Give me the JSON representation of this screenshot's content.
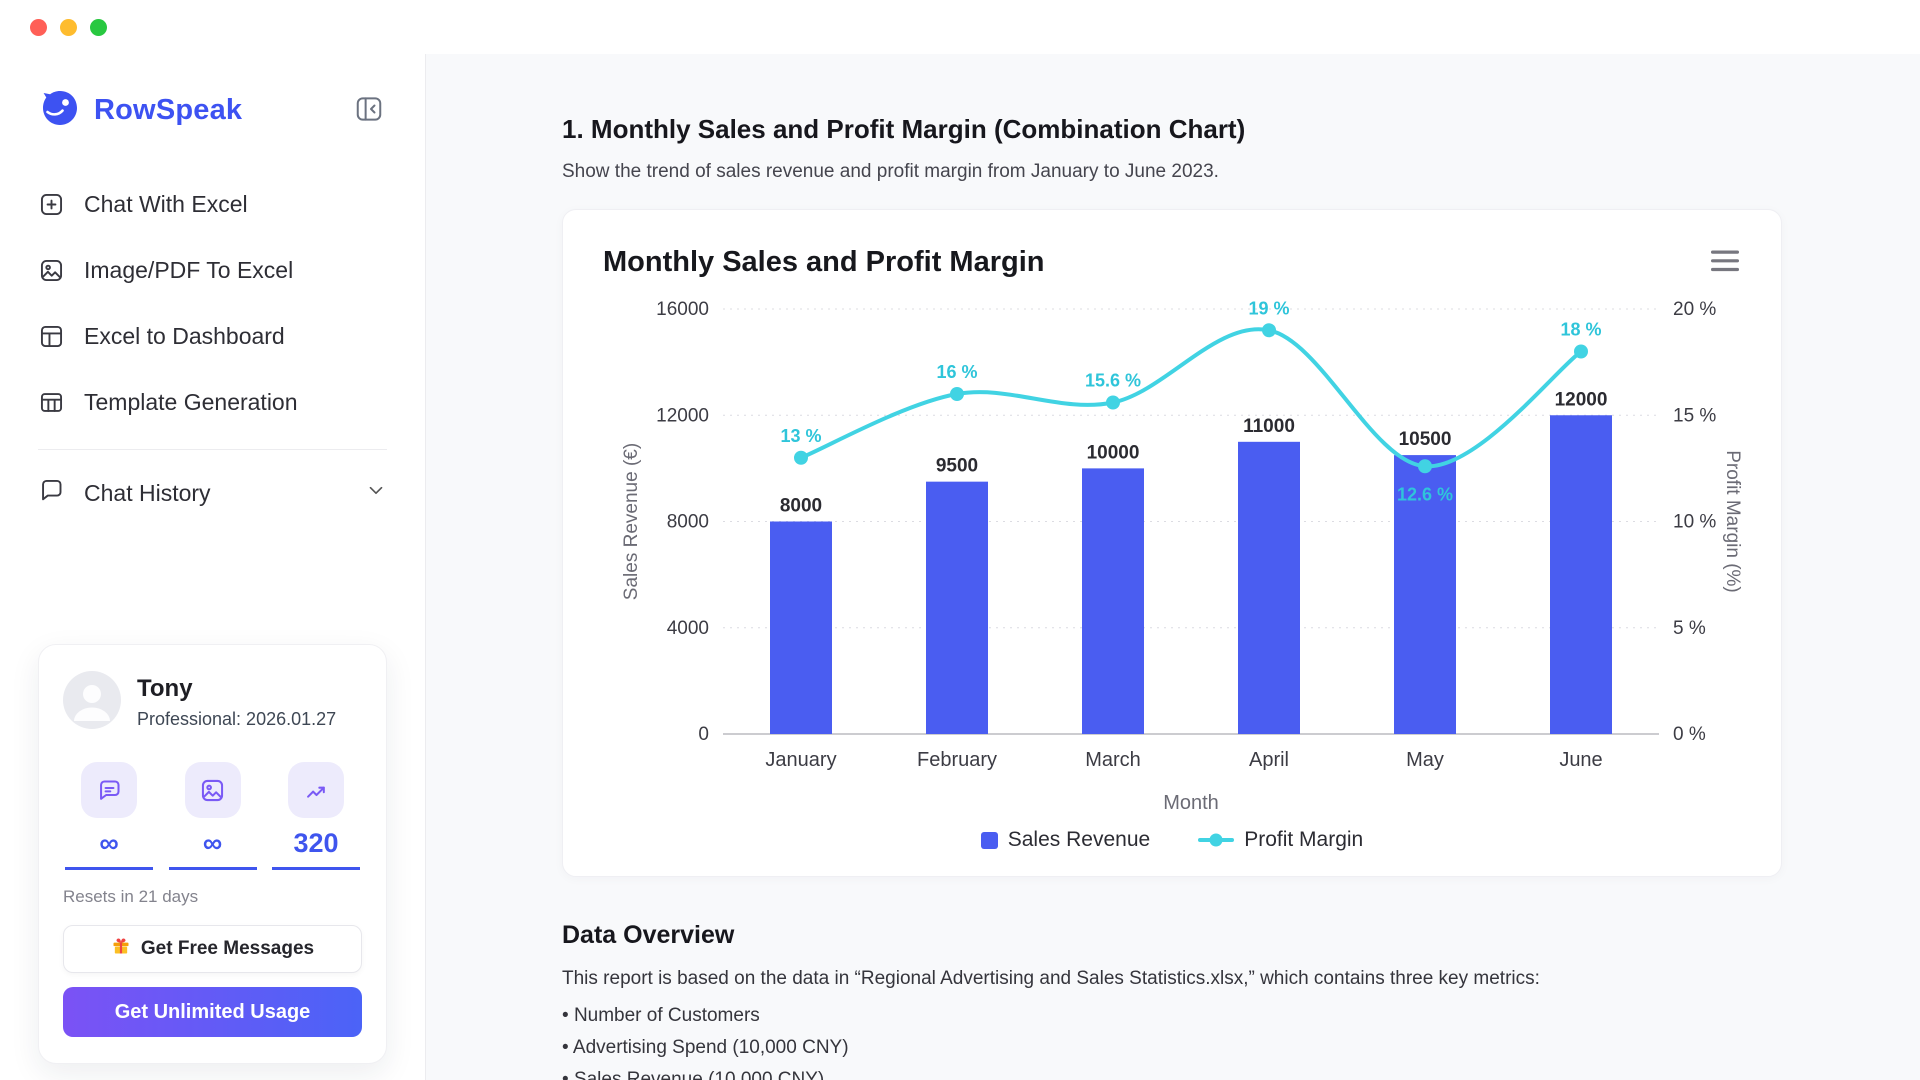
{
  "window": {
    "traffic_lights": [
      "#ff5f57",
      "#febc2e",
      "#28c840"
    ]
  },
  "sidebar": {
    "brand": "RowSpeak",
    "items": [
      {
        "label": "Chat With Excel",
        "icon": "chat-plus-icon"
      },
      {
        "label": "Image/PDF To Excel",
        "icon": "image-icon"
      },
      {
        "label": "Excel to Dashboard",
        "icon": "dashboard-icon"
      },
      {
        "label": "Template Generation",
        "icon": "table-icon"
      }
    ],
    "history": {
      "label": "Chat History",
      "icon": "chat-bubble-icon"
    },
    "user": {
      "name": "Tony",
      "plan": "Professional: 2026.01.27",
      "stats": [
        {
          "icon": "chat-icon",
          "value": "∞"
        },
        {
          "icon": "image-icon",
          "value": "∞"
        },
        {
          "icon": "trend-icon",
          "value": "320"
        }
      ],
      "resets": "Resets in 21 days",
      "free_btn_label": "Get Free Messages",
      "upgrade_btn_label": "Get Unlimited Usage"
    }
  },
  "main": {
    "heading": "1. Monthly Sales and Profit Margin (Combination Chart)",
    "subheading": "Show the trend of sales revenue and profit margin from January to June 2023.",
    "data_overview": {
      "title": "Data Overview",
      "intro": "This report is based on the data in “Regional Advertising and Sales Statistics.xlsx,” which contains three key metrics:",
      "bullets": [
        "Number of Customers",
        "Advertising Spend (10,000 CNY)",
        "Sales Revenue (10,000 CNY)"
      ]
    }
  },
  "chart_data": {
    "type": "combo",
    "title": "Monthly Sales and Profit Margin",
    "categories": [
      "January",
      "February",
      "March",
      "April",
      "May",
      "June"
    ],
    "series": [
      {
        "name": "Sales Revenue",
        "type": "bar",
        "axis": "left",
        "color": "#4a5df1",
        "values": [
          8000,
          9500,
          10000,
          11000,
          10500,
          12000
        ]
      },
      {
        "name": "Profit Margin",
        "type": "line",
        "axis": "right",
        "color": "#41d3e3",
        "label_color": "#2fc5da",
        "values": [
          13,
          16,
          15.6,
          19,
          12.6,
          18
        ],
        "point_labels": [
          "13 %",
          "16 %",
          "15.6 %",
          "19 %",
          "12.6 %",
          "18 %"
        ],
        "label_positions": [
          "above",
          "above",
          "above",
          "above",
          "below",
          "above"
        ]
      }
    ],
    "xlabel": "Month",
    "left_axis": {
      "label": "Sales Revenue (€)",
      "min": 0,
      "max": 16000,
      "ticks": [
        0,
        4000,
        8000,
        12000,
        16000
      ]
    },
    "right_axis": {
      "label": "Profit Margin (%)",
      "min": 0,
      "max": 20,
      "tick_labels": [
        "0 %",
        "5 %",
        "10 %",
        "15 %",
        "20 %"
      ]
    },
    "grid": "dotted-horizontal",
    "legend_position": "bottom"
  }
}
